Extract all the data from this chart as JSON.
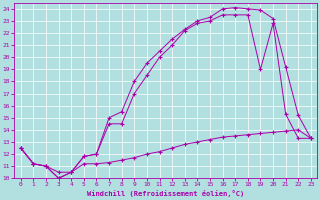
{
  "xlabel": "Windchill (Refroidissement éolien,°C)",
  "background_color": "#b2dfdf",
  "grid_color": "#d0f0f0",
  "line_color": "#aa00aa",
  "xlim": [
    -0.5,
    23.5
  ],
  "ylim": [
    10,
    24.5
  ],
  "xticks": [
    0,
    1,
    2,
    3,
    4,
    5,
    6,
    7,
    8,
    9,
    10,
    11,
    12,
    13,
    14,
    15,
    16,
    17,
    18,
    19,
    20,
    21,
    22,
    23
  ],
  "yticks": [
    10,
    11,
    12,
    13,
    14,
    15,
    16,
    17,
    18,
    19,
    20,
    21,
    22,
    23,
    24
  ],
  "line1_x": [
    0,
    1,
    2,
    3,
    4,
    5,
    6,
    7,
    8,
    9,
    10,
    11,
    12,
    13,
    14,
    15,
    16,
    17,
    18,
    19,
    20,
    21,
    22,
    23
  ],
  "line1_y": [
    12.5,
    11.2,
    11.0,
    10.5,
    10.5,
    11.2,
    11.2,
    11.3,
    11.5,
    11.7,
    12.0,
    12.2,
    12.5,
    12.8,
    13.0,
    13.2,
    13.4,
    13.5,
    13.6,
    13.7,
    13.8,
    13.9,
    14.0,
    13.3
  ],
  "line2_x": [
    0,
    1,
    2,
    3,
    4,
    5,
    6,
    7,
    8,
    9,
    10,
    11,
    12,
    13,
    14,
    15,
    16,
    17,
    18,
    19,
    20,
    21,
    22,
    23
  ],
  "line2_y": [
    12.5,
    11.2,
    11.0,
    10.0,
    10.5,
    11.8,
    12.0,
    15.0,
    15.5,
    18.0,
    19.5,
    20.5,
    21.5,
    22.3,
    23.0,
    23.3,
    24.0,
    24.1,
    24.0,
    23.9,
    23.2,
    19.2,
    15.2,
    13.3
  ],
  "line3_x": [
    0,
    1,
    2,
    3,
    4,
    5,
    6,
    7,
    8,
    9,
    10,
    11,
    12,
    13,
    14,
    15,
    16,
    17,
    18,
    19,
    20,
    21,
    22,
    23
  ],
  "line3_y": [
    12.5,
    11.2,
    11.0,
    10.0,
    10.5,
    11.8,
    12.0,
    14.5,
    14.5,
    17.0,
    18.5,
    20.0,
    21.0,
    22.2,
    22.8,
    23.0,
    23.5,
    23.5,
    23.5,
    19.0,
    22.8,
    15.3,
    13.3,
    13.3
  ]
}
